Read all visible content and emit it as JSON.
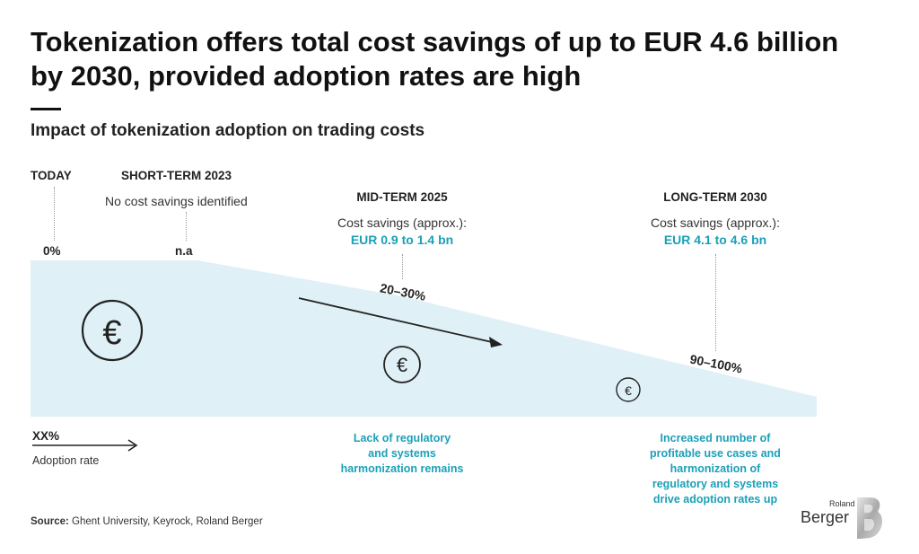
{
  "header": {
    "title_line1": "Tokenization offers total cost savings of up to EUR 4.6 billion",
    "title_line2": "by 2030, provided adoption rates are high",
    "subtitle": "Impact of tokenization adoption on trading costs"
  },
  "stages": {
    "today": {
      "label": "TODAY",
      "value": "0%"
    },
    "short_term": {
      "label": "SHORT-TERM 2023",
      "note": "No cost savings identified",
      "value": "n.a"
    },
    "mid_term": {
      "label": "MID-TERM 2025",
      "savings_label": "Cost savings (approx.):",
      "savings_value": "EUR 0.9 to 1.4 bn",
      "adoption": "20–30%"
    },
    "long_term": {
      "label": "LONG-TERM 2030",
      "savings_label": "Cost savings (approx.):",
      "savings_value": "EUR 4.1 to 4.6 bn",
      "adoption": "90–100%"
    }
  },
  "legend": {
    "value": "XX%",
    "label": "Adoption rate"
  },
  "notes": {
    "mid": [
      "Lack of regulatory",
      "and systems",
      "harmonization remains"
    ],
    "long": [
      "Increased number of",
      "profitable use cases and",
      "harmonization of",
      "regulatory and systems",
      "drive adoption rates up"
    ]
  },
  "icons": {
    "euro": "euro-icon",
    "arrow": "arrow-right-icon"
  },
  "source": {
    "label": "Source:",
    "text": "Ghent University, Keyrock, Roland Berger"
  },
  "logo": {
    "small": "Roland",
    "large": "Berger",
    "mark": "B"
  },
  "colors": {
    "teal": "#1ba0b8",
    "area": "#dff0f6",
    "text": "#1a1a1a"
  },
  "chart_data": {
    "type": "area",
    "x": [
      "TODAY",
      "SHORT-TERM 2023",
      "MID-TERM 2025",
      "LONG-TERM 2030"
    ],
    "series": [
      {
        "values": [
          0,
          0,
          25,
          95
        ]
      }
    ]
  }
}
